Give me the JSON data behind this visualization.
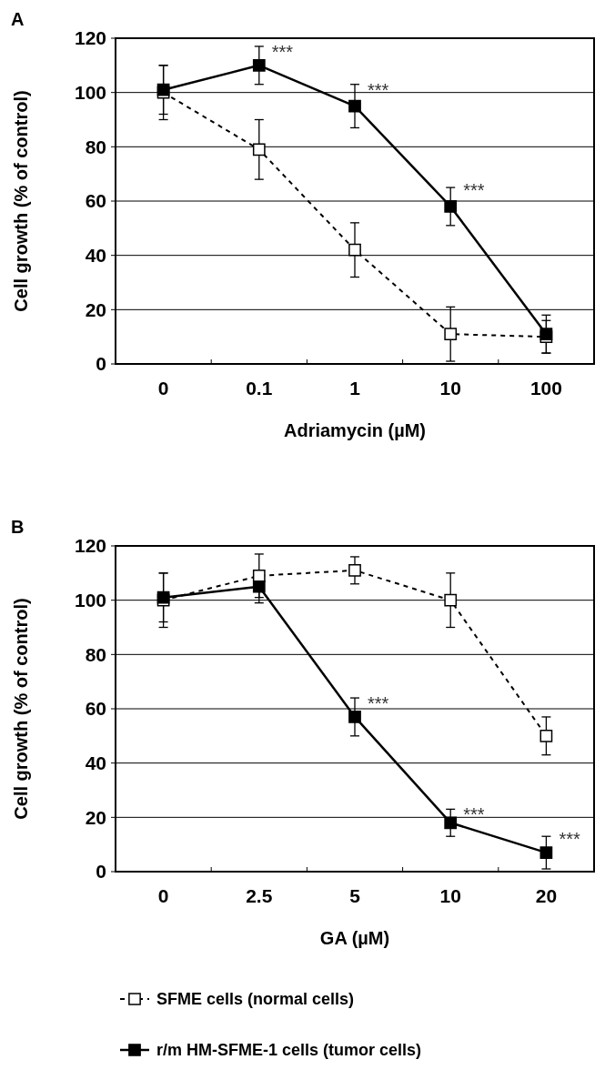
{
  "chart_data": [
    {
      "type": "line",
      "title": "A",
      "xlabel": "Adriamycin (µM)",
      "ylabel": "Cell growth (% of control)",
      "categories": [
        "0",
        "0.1",
        "1",
        "10",
        "100"
      ],
      "ylim": [
        0,
        120
      ],
      "yticks": [
        0,
        20,
        40,
        60,
        80,
        100,
        120
      ],
      "grid": "y",
      "marker": "square",
      "series": [
        {
          "color": "#000000",
          "line_style": "dashed",
          "values": [
            100,
            79,
            42,
            11,
            10
          ],
          "errors": [
            10,
            11,
            10,
            10,
            6
          ]
        },
        {
          "color": "#000000",
          "line_style": "solid",
          "values": [
            101,
            110,
            95,
            58,
            11
          ],
          "errors": [
            9,
            7,
            8,
            7,
            7
          ]
        }
      ],
      "annotations": [
        {
          "text": "***",
          "x": "0.1",
          "y": 115
        },
        {
          "text": "***",
          "x": "1",
          "y": 101
        },
        {
          "text": "***",
          "x": "10",
          "y": 64
        }
      ]
    },
    {
      "type": "line",
      "title": "B",
      "xlabel": "GA (µM)",
      "ylabel": "Cell growth (% of control)",
      "categories": [
        "0",
        "2.5",
        "5",
        "10",
        "20"
      ],
      "ylim": [
        0,
        120
      ],
      "yticks": [
        0,
        20,
        40,
        60,
        80,
        100,
        120
      ],
      "grid": "y",
      "marker": "square",
      "legend": "bottom",
      "series": [
        {
          "name": "SFME cells (normal cells)",
          "color": "#000000",
          "line_style": "dashed",
          "values": [
            100,
            109,
            111,
            100,
            50
          ],
          "errors": [
            10,
            8,
            5,
            10,
            7
          ]
        },
        {
          "name": "r/m HM-SFME-1 cells (tumor cells)",
          "color": "#000000",
          "line_style": "solid",
          "values": [
            101,
            105,
            57,
            18,
            7
          ],
          "errors": [
            9,
            6,
            7,
            5,
            6
          ]
        }
      ],
      "annotations": [
        {
          "text": "***",
          "x": "5",
          "y": 62
        },
        {
          "text": "***",
          "x": "10",
          "y": 21
        },
        {
          "text": "***",
          "x": "20",
          "y": 12
        }
      ]
    }
  ]
}
